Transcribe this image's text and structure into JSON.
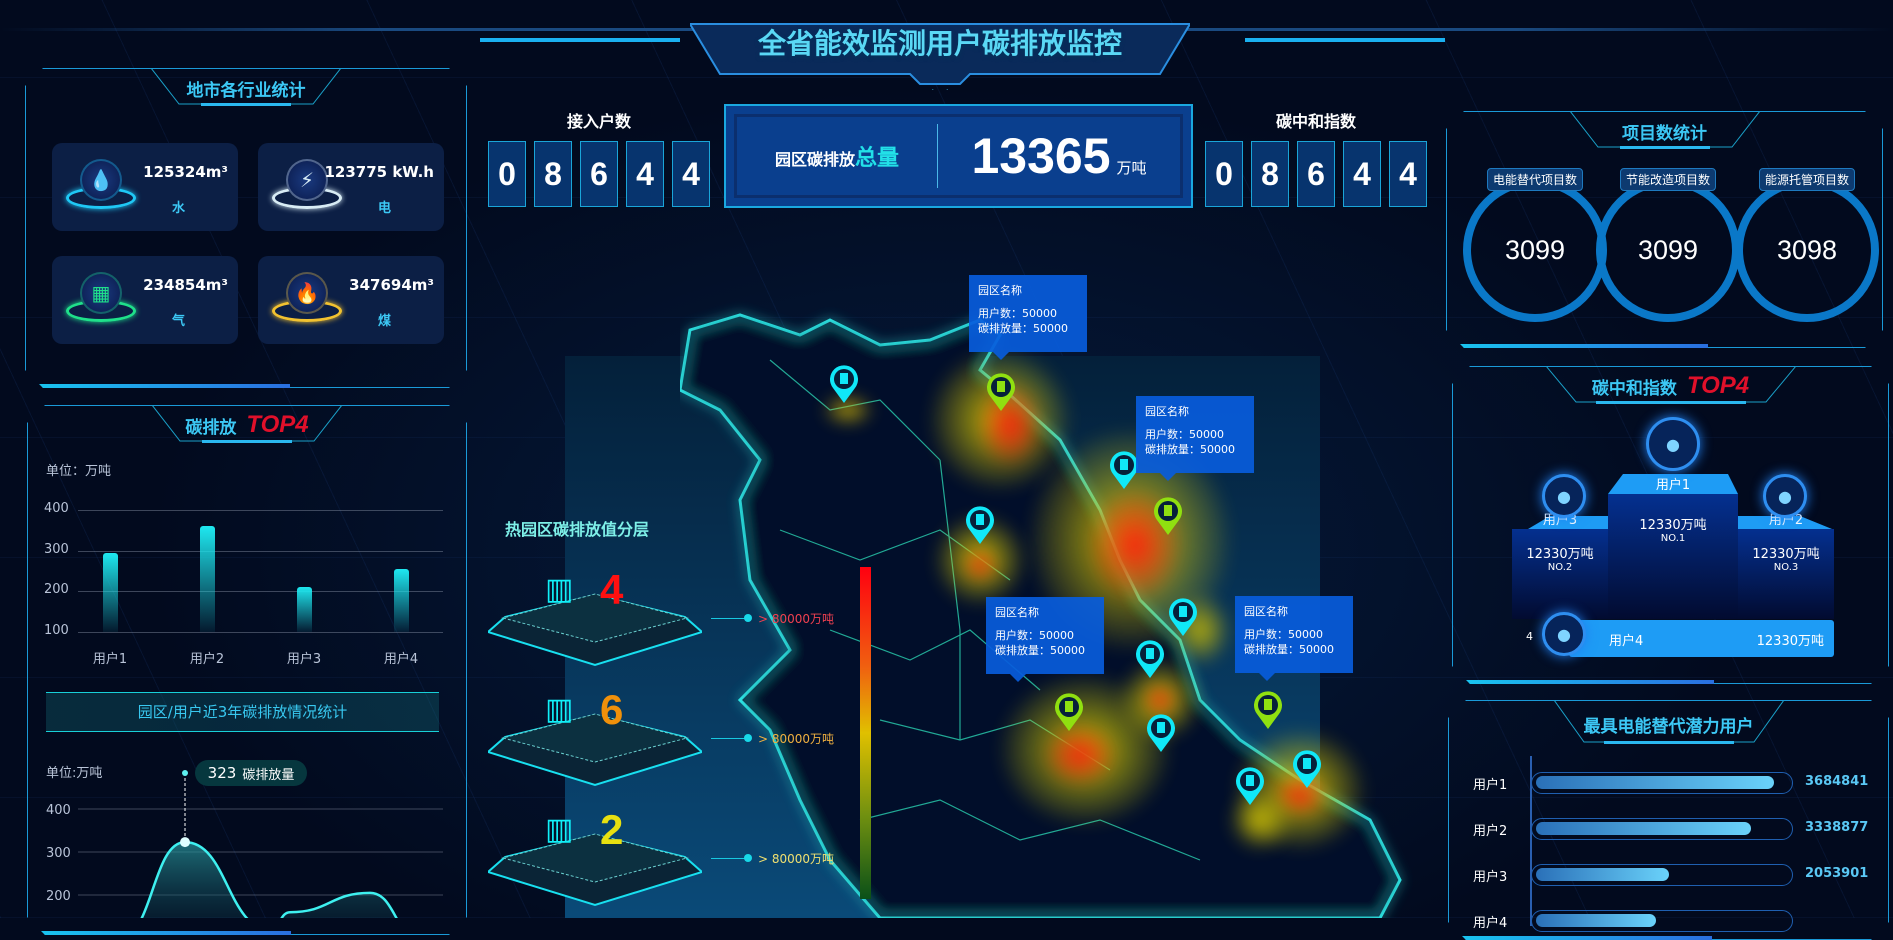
{
  "header": {
    "title": "全省能效监测用户碳排放监控"
  },
  "industry": {
    "title": "地市各行业统计",
    "cards": [
      {
        "value": "125324m³",
        "label": "水",
        "icon": "water-drop-icon",
        "color": "#1fc8f5"
      },
      {
        "value": "123775 kW.h",
        "label": "电",
        "icon": "lightning-icon",
        "color": "#d8ecf5"
      },
      {
        "value": "234854m³",
        "label": "气",
        "icon": "gas-icon",
        "color": "#1fe08a"
      },
      {
        "value": "347694m³",
        "label": "煤",
        "icon": "flame-icon",
        "color": "#f2c230"
      }
    ]
  },
  "emission_top": {
    "title": "碳排放",
    "badge": "TOP4",
    "unit": "单位：万吨",
    "banner": "园区/用户近3年碳排放情况统计"
  },
  "trend": {
    "unit": "单位:万吨",
    "tooltip_value": "323",
    "tooltip_label": "碳排放量"
  },
  "chart_data": [
    {
      "type": "bar",
      "categories": [
        "用户1",
        "用户2",
        "用户3",
        "用户4"
      ],
      "values": [
        295,
        360,
        210,
        255
      ],
      "ylabel": "单位：万吨",
      "ylim": [
        100,
        400
      ],
      "yticks": [
        100,
        200,
        300,
        400
      ],
      "color": "#1ee8f0"
    },
    {
      "type": "area",
      "values": [
        100,
        323,
        120,
        160,
        205,
        100
      ],
      "ylabel": "单位:万吨",
      "ylim": [
        100,
        400
      ],
      "yticks": [
        200,
        300,
        400
      ],
      "highlight": {
        "value": 323,
        "label": "碳排放量"
      },
      "color": "#3ef0f0"
    }
  ],
  "access": {
    "label": "接入户数",
    "digits": [
      "0",
      "8",
      "6",
      "4",
      "4"
    ]
  },
  "total": {
    "label_a": "园区碳排放",
    "label_b": "总量",
    "value": "13365",
    "unit": "万吨"
  },
  "neutral": {
    "label": "碳中和指数",
    "digits": [
      "0",
      "8",
      "6",
      "4",
      "4"
    ]
  },
  "layers": {
    "title": "热园区碳排放值分层",
    "items": [
      {
        "count": "4",
        "label": "> 80000万吨",
        "color": "#ff1010",
        "label_color": "#f04050"
      },
      {
        "count": "6",
        "label": "> 80000万吨",
        "color": "#f0900a",
        "label_color": "#f0b040"
      },
      {
        "count": "2",
        "label": "> 80000万吨",
        "color": "#e8e010",
        "label_color": "#f0e070"
      }
    ]
  },
  "map": {
    "tooltips": [
      {
        "name": "园区名称",
        "users": "用户数：50000",
        "emission": "碳排放量：50000"
      },
      {
        "name": "园区名称",
        "users": "用户数：50000",
        "emission": "碳排放量：50000"
      },
      {
        "name": "园区名称",
        "users": "用户数：50000",
        "emission": "碳排放量：50000"
      },
      {
        "name": "园区名称",
        "users": "用户数：50000",
        "emission": "碳排放量：50000"
      }
    ]
  },
  "projects": {
    "title": "项目数统计",
    "items": [
      {
        "label": "电能替代项目数",
        "value": "3099"
      },
      {
        "label": "节能改造项目数",
        "value": "3099"
      },
      {
        "label": "能源托管项目数",
        "value": "3098"
      }
    ]
  },
  "neutral_top": {
    "title": "碳中和指数",
    "badge": "TOP4",
    "first": {
      "name": "用户1",
      "value": "12330万吨",
      "rank": "NO.1"
    },
    "second": {
      "name": "用户3",
      "value": "12330万吨",
      "rank": "NO.2"
    },
    "third": {
      "name": "用户2",
      "value": "12330万吨",
      "rank": "NO.3"
    },
    "fourth": {
      "index": "4",
      "name": "用户4",
      "value": "12330万吨"
    }
  },
  "potential": {
    "title": "最具电能替代潜力用户",
    "items": [
      {
        "name": "用户1",
        "value": "3684841",
        "pct": 95
      },
      {
        "name": "用户2",
        "value": "3338877",
        "pct": 86
      },
      {
        "name": "用户3",
        "value": "2053901",
        "pct": 53
      },
      {
        "name": "用户4",
        "pct": 48
      }
    ]
  }
}
